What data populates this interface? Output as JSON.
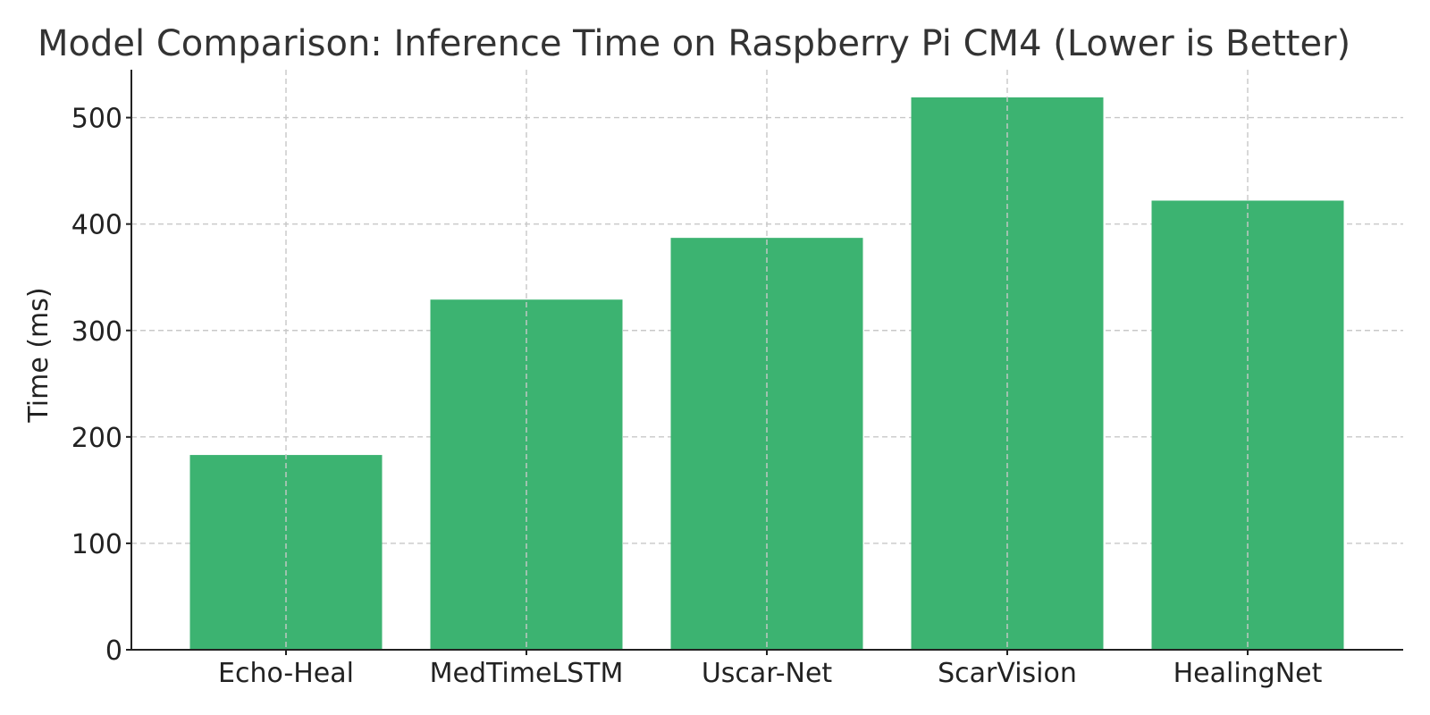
{
  "chart_data": {
    "type": "bar",
    "title": "Model Comparison: Inference Time on Raspberry Pi CM4 (Lower is Better)",
    "xlabel": "",
    "ylabel": "Time (ms)",
    "categories": [
      "Echo-Heal",
      "MedTimeLSTM",
      "Uscar-Net",
      "ScarVision",
      "HealingNet"
    ],
    "values": [
      183,
      329,
      387,
      519,
      422
    ],
    "ylim": [
      0,
      545
    ],
    "yticks": [
      0,
      100,
      200,
      300,
      400,
      500
    ],
    "bar_color": "#3cb371",
    "grid": true,
    "grid_color": "#c8c8c8",
    "legend": "none"
  }
}
